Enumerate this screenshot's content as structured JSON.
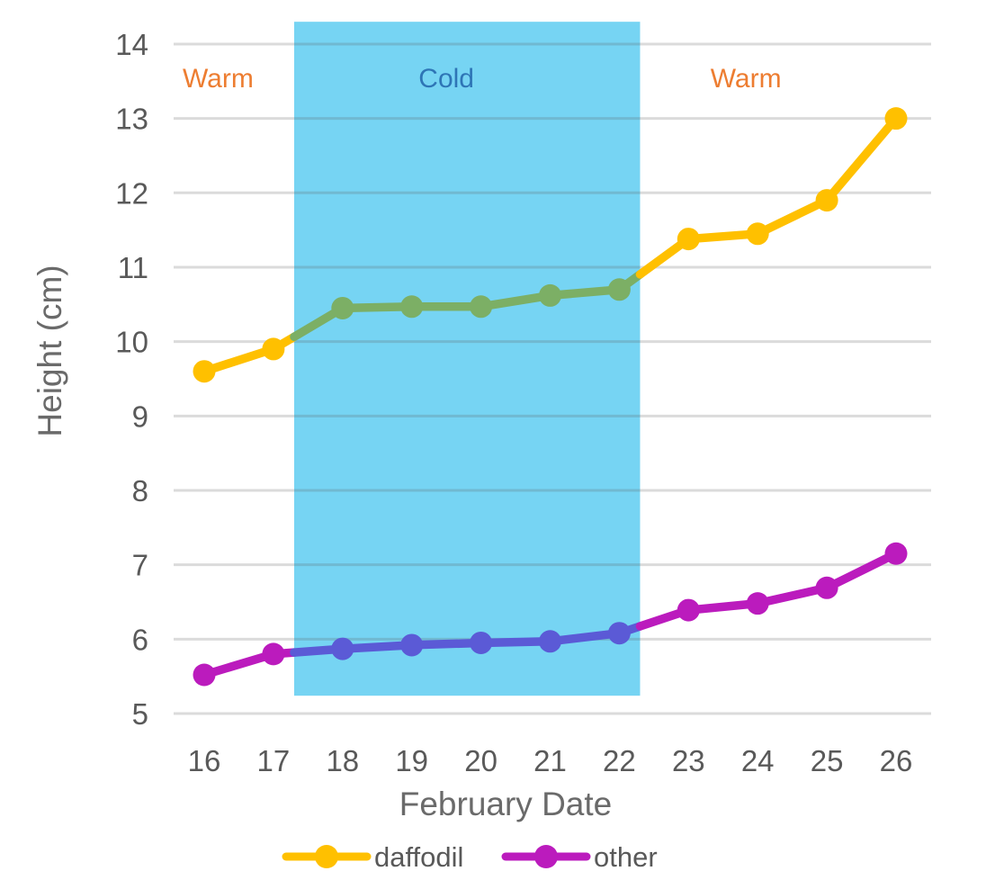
{
  "chart_data": {
    "type": "line",
    "title": "",
    "xlabel": "February Date",
    "ylabel": "Height (cm)",
    "x": [
      16,
      17,
      18,
      19,
      20,
      21,
      22,
      23,
      24,
      25,
      26
    ],
    "series": [
      {
        "name": "daffodil",
        "color": "#FFC000",
        "color_in_cold_band": "#7CAF65",
        "values": [
          9.6,
          9.9,
          10.45,
          10.47,
          10.47,
          10.62,
          10.7,
          11.38,
          11.45,
          11.9,
          13.0
        ]
      },
      {
        "name": "other",
        "color": "#BB1BBD",
        "color_in_cold_band": "#5B5AD6",
        "values": [
          5.52,
          5.8,
          5.87,
          5.92,
          5.95,
          5.97,
          6.08,
          6.39,
          6.48,
          6.69,
          7.15
        ]
      }
    ],
    "ylim": [
      5,
      14
    ],
    "yticks": [
      5,
      6,
      7,
      8,
      9,
      10,
      11,
      12,
      13,
      14
    ],
    "grid": "horizontal",
    "gridline_color": "#D9D9D9",
    "tick_label_color": "#595959",
    "axis_title_color": "#6A6A6A",
    "legend_position": "bottom",
    "cold_band": {
      "x_start": 17.3,
      "x_end": 22.3,
      "top_value": 14.3,
      "bottom_value": 5.24,
      "color": "#76D4F3"
    },
    "annotations": [
      {
        "text": "Warm",
        "x": 16.2,
        "y": 13.42,
        "color": "#ED7D31"
      },
      {
        "text": "Cold",
        "x": 19.5,
        "y": 13.42,
        "color": "#2E75B6"
      },
      {
        "text": "Warm",
        "x": 23.83,
        "y": 13.42,
        "color": "#ED7D31"
      }
    ]
  },
  "legend": {
    "items": [
      {
        "label": "daffodil"
      },
      {
        "label": "other"
      }
    ]
  }
}
